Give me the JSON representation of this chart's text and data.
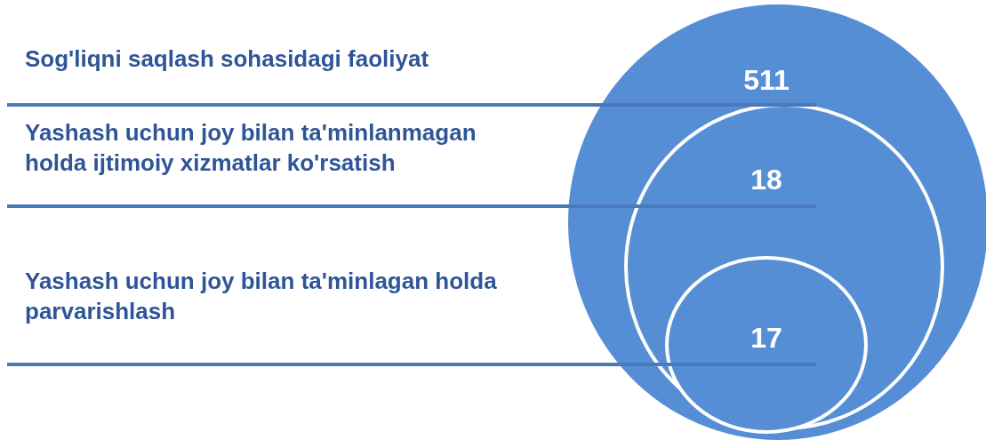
{
  "chart_data": {
    "type": "other",
    "categories": [
      "Sog'liqni saqlash sohasidagi faoliyat",
      "Yashash uchun joy bilan ta'minlanmagan holda ijtimoiy xizmatlar ko'rsatish",
      "Yashash uchun joy bilan ta'minlagan holda parvarishlash"
    ],
    "values": [
      511,
      18,
      17
    ],
    "color": "#558ed5",
    "data_labels": true
  }
}
